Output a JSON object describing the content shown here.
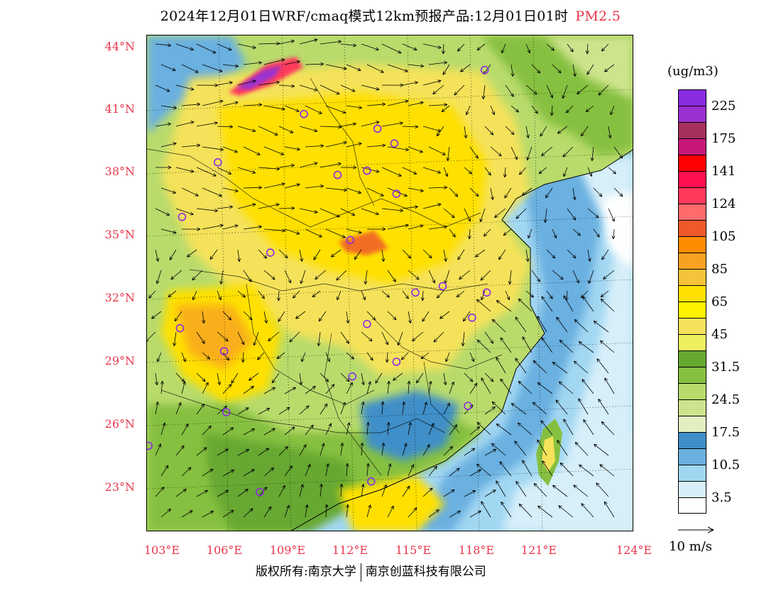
{
  "title": {
    "main": "2024年12月01日WRF/cmaq模式12km预报产品:12月01日01时",
    "species": "PM2.5"
  },
  "lat_labels": [
    "44°N",
    "41°N",
    "38°N",
    "35°N",
    "32°N",
    "29°N",
    "26°N",
    "23°N"
  ],
  "lon_labels": [
    "103°E",
    "106°E",
    "109°E",
    "112°E",
    "115°E",
    "118°E",
    "121°E",
    "124°E"
  ],
  "legend": {
    "unit": "(ug/m3)",
    "levels": [
      {
        "label": "225",
        "color": "#8a2be2"
      },
      {
        "label": "",
        "color": "#9b30d0"
      },
      {
        "label": "175",
        "color": "#a8305f"
      },
      {
        "label": "",
        "color": "#c8177a"
      },
      {
        "label": "141",
        "color": "#ff0000"
      },
      {
        "label": "",
        "color": "#ff1050"
      },
      {
        "label": "124",
        "color": "#ff3a5c"
      },
      {
        "label": "",
        "color": "#ff6a6a"
      },
      {
        "label": "105",
        "color": "#f05a2a"
      },
      {
        "label": "",
        "color": "#ff8c00"
      },
      {
        "label": "85",
        "color": "#f7a321"
      },
      {
        "label": "",
        "color": "#f5c43a"
      },
      {
        "label": "65",
        "color": "#ffe000"
      },
      {
        "label": "",
        "color": "#fff200"
      },
      {
        "label": "45",
        "color": "#f5e25a"
      },
      {
        "label": "",
        "color": "#eef060"
      },
      {
        "label": "31.5",
        "color": "#66a832"
      },
      {
        "label": "",
        "color": "#86c040"
      },
      {
        "label": "24.5",
        "color": "#b8db6c"
      },
      {
        "label": "",
        "color": "#cde48c"
      },
      {
        "label": "17.5",
        "color": "#e4efc0"
      },
      {
        "label": "",
        "color": "#3f8fc8"
      },
      {
        "label": "10.5",
        "color": "#6ab0e0"
      },
      {
        "label": "",
        "color": "#a2d7f2"
      },
      {
        "label": "3.5",
        "color": "#d7eff9"
      },
      {
        "label": "",
        "color": "#ffffff"
      }
    ]
  },
  "wind_scale": "10 m/s",
  "copyright": {
    "left": "版权所有:南京大学",
    "right": "南京创蓝科技有限公司"
  },
  "cities": [
    {
      "name": "",
      "lon": 118.8,
      "lat": 42.9
    },
    {
      "name": "",
      "lon": 110.2,
      "lat": 40.8
    },
    {
      "name": "",
      "lon": 113.7,
      "lat": 40.1
    },
    {
      "name": "",
      "lon": 114.5,
      "lat": 39.4
    },
    {
      "name": "",
      "lon": 106.1,
      "lat": 38.5
    },
    {
      "name": "",
      "lon": 111.8,
      "lat": 37.9
    },
    {
      "name": "",
      "lon": 113.2,
      "lat": 38.1
    },
    {
      "name": "",
      "lon": 114.6,
      "lat": 37.0
    },
    {
      "name": "",
      "lon": 104.4,
      "lat": 35.9
    },
    {
      "name": "",
      "lon": 112.4,
      "lat": 34.8
    },
    {
      "name": "",
      "lon": 108.6,
      "lat": 34.2
    },
    {
      "name": "",
      "lon": 115.5,
      "lat": 32.3
    },
    {
      "name": "",
      "lon": 116.8,
      "lat": 32.6
    },
    {
      "name": "",
      "lon": 118.9,
      "lat": 32.3
    },
    {
      "name": "",
      "lon": 104.3,
      "lat": 30.6
    },
    {
      "name": "",
      "lon": 118.2,
      "lat": 31.1
    },
    {
      "name": "",
      "lon": 113.2,
      "lat": 30.8
    },
    {
      "name": "",
      "lon": 106.4,
      "lat": 29.5
    },
    {
      "name": "",
      "lon": 114.6,
      "lat": 29.0
    },
    {
      "name": "",
      "lon": 112.5,
      "lat": 28.3
    },
    {
      "name": "",
      "lon": 106.5,
      "lat": 26.6
    },
    {
      "name": "",
      "lon": 118.0,
      "lat": 26.9
    },
    {
      "name": "",
      "lon": 102.8,
      "lat": 25.0
    },
    {
      "name": "",
      "lon": 113.4,
      "lat": 23.3
    },
    {
      "name": "",
      "lon": 108.1,
      "lat": 22.8
    }
  ]
}
